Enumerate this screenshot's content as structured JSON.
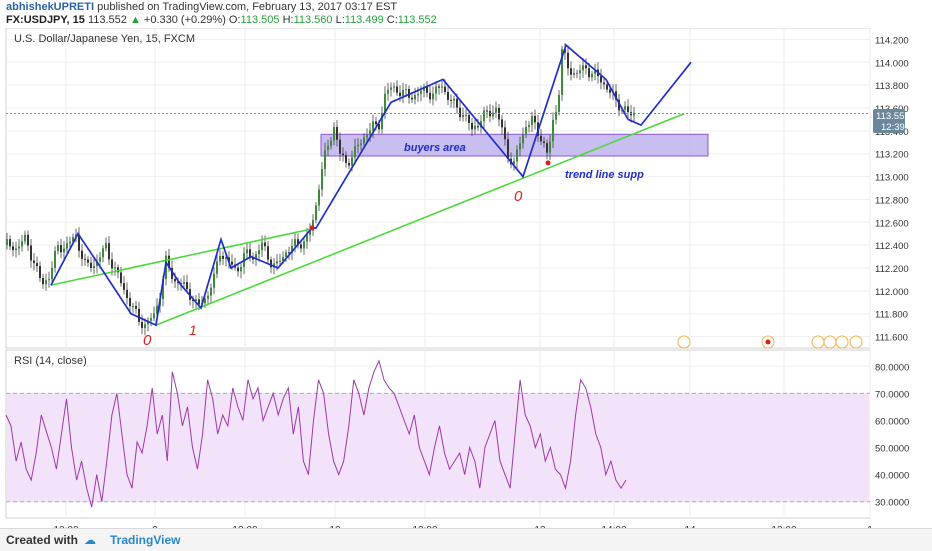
{
  "header": {
    "author": "abhishekUPRETI",
    "published": "published on TradingView.com, February 13, 2017 03:17 EST",
    "symbol": "FX:USDJPY, 15",
    "last": "113.552",
    "change": "+0.330 (+0.29%)",
    "o_label": "O:",
    "o": "113.505",
    "h_label": "H:",
    "h": "113.560",
    "l_label": "L:",
    "l": "113.499",
    "c_label": "C:",
    "c": "113.552"
  },
  "pane_title": "U.S. Dollar/Japanese Yen, 15, FXCM",
  "price_badge": {
    "value": "113.552",
    "time": "12:39"
  },
  "annotations": {
    "buyers_area": "buyers area",
    "trend_line": "trend line supp",
    "mark_0a": "0",
    "mark_1": "1",
    "mark_0b": "0"
  },
  "rsi": {
    "title": "RSI (14, close)"
  },
  "footer": {
    "created": "Created with",
    "brand": "TradingView"
  },
  "colors": {
    "price": "#333333",
    "rsi": "#9b39a8",
    "rsi_band": "#f2e3fb",
    "zone": "#b6a8ea",
    "blue_line": "#1f2ec9",
    "green_line": "#4cd93a",
    "mark_red": "#d92020",
    "badge": "#6b879c"
  },
  "chart_data": [
    {
      "type": "candlestick",
      "title": "U.S. Dollar/Japanese Yen, 15, FXCM",
      "x_ticks": [
        "12:00",
        "9",
        "12:00",
        "10",
        "12:00",
        "13",
        "14:00",
        "14",
        "12:00",
        "1"
      ],
      "y_ticks": [
        "114.200",
        "114.000",
        "113.800",
        "113.600",
        "113.400",
        "113.200",
        "113.000",
        "112.800",
        "112.600",
        "112.400",
        "112.200",
        "112.000",
        "111.800",
        "111.600"
      ],
      "ylim": [
        111.5,
        114.3
      ],
      "last_price": 113.552,
      "close_path": [
        [
          0,
          112.4
        ],
        [
          10,
          112.38
        ],
        [
          20,
          112.45
        ],
        [
          28,
          112.25
        ],
        [
          36,
          112.05
        ],
        [
          44,
          112.15
        ],
        [
          52,
          112.38
        ],
        [
          62,
          112.4
        ],
        [
          70,
          112.48
        ],
        [
          80,
          112.2
        ],
        [
          90,
          112.25
        ],
        [
          100,
          112.38
        ],
        [
          108,
          112.2
        ],
        [
          116,
          112.05
        ],
        [
          124,
          111.9
        ],
        [
          132,
          111.75
        ],
        [
          140,
          111.7
        ],
        [
          148,
          111.78
        ],
        [
          156,
          112.05
        ],
        [
          160,
          112.25
        ],
        [
          168,
          112.1
        ],
        [
          176,
          112.05
        ],
        [
          184,
          111.98
        ],
        [
          192,
          111.85
        ],
        [
          200,
          111.95
        ],
        [
          208,
          112.1
        ],
        [
          214,
          112.35
        ],
        [
          222,
          112.25
        ],
        [
          230,
          112.18
        ],
        [
          240,
          112.32
        ],
        [
          248,
          112.3
        ],
        [
          256,
          112.4
        ],
        [
          262,
          112.3
        ],
        [
          270,
          112.2
        ],
        [
          280,
          112.35
        ],
        [
          290,
          112.4
        ],
        [
          300,
          112.45
        ],
        [
          306,
          112.55
        ],
        [
          310,
          112.75
        ],
        [
          314,
          113.0
        ],
        [
          318,
          113.15
        ],
        [
          322,
          113.25
        ],
        [
          328,
          113.45
        ],
        [
          334,
          113.2
        ],
        [
          340,
          113.1
        ],
        [
          346,
          113.2
        ],
        [
          352,
          113.25
        ],
        [
          358,
          113.35
        ],
        [
          366,
          113.45
        ],
        [
          372,
          113.4
        ],
        [
          378,
          113.7
        ],
        [
          386,
          113.78
        ],
        [
          394,
          113.75
        ],
        [
          402,
          113.7
        ],
        [
          410,
          113.72
        ],
        [
          420,
          113.75
        ],
        [
          428,
          113.72
        ],
        [
          436,
          113.8
        ],
        [
          442,
          113.7
        ],
        [
          450,
          113.6
        ],
        [
          458,
          113.55
        ],
        [
          466,
          113.4
        ],
        [
          474,
          113.5
        ],
        [
          482,
          113.55
        ],
        [
          490,
          113.6
        ],
        [
          496,
          113.4
        ],
        [
          502,
          113.2
        ],
        [
          508,
          113.1
        ],
        [
          514,
          113.3
        ],
        [
          520,
          113.45
        ],
        [
          526,
          113.5
        ],
        [
          530,
          113.4
        ],
        [
          536,
          113.35
        ],
        [
          542,
          113.15
        ],
        [
          546,
          113.45
        ],
        [
          552,
          113.65
        ],
        [
          556,
          114.1
        ],
        [
          562,
          113.95
        ],
        [
          570,
          113.9
        ],
        [
          580,
          113.95
        ],
        [
          590,
          113.88
        ],
        [
          600,
          113.8
        ],
        [
          610,
          113.65
        ],
        [
          618,
          113.6
        ],
        [
          624,
          113.52
        ],
        [
          628,
          113.552
        ]
      ],
      "zigzag": [
        [
          45,
          112.05
        ],
        [
          72,
          112.5
        ],
        [
          95,
          112.2
        ],
        [
          125,
          111.8
        ],
        [
          150,
          111.7
        ],
        [
          160,
          112.25
        ],
        [
          175,
          112.05
        ],
        [
          195,
          111.85
        ],
        [
          215,
          112.45
        ],
        [
          225,
          112.2
        ],
        [
          245,
          112.3
        ],
        [
          272,
          112.2
        ],
        [
          306,
          112.55
        ],
        [
          310,
          112.55
        ],
        [
          385,
          113.65
        ],
        [
          437,
          113.85
        ],
        [
          517,
          113.0
        ],
        [
          560,
          114.15
        ],
        [
          600,
          113.85
        ],
        [
          622,
          113.5
        ]
      ],
      "projection": [
        [
          622,
          113.5
        ],
        [
          635,
          113.45
        ],
        [
          685,
          114.0
        ]
      ],
      "support_lines": [
        {
          "from": [
            45,
            112.05
          ],
          "to": [
            310,
            112.55
          ]
        },
        {
          "from": [
            150,
            111.7
          ],
          "to": [
            678,
            113.55
          ]
        }
      ],
      "buyers_area": {
        "x_from": 315,
        "x_to": 702,
        "y_from": 113.18,
        "y_to": 113.37
      }
    },
    {
      "type": "line",
      "title": "RSI (14, close)",
      "y_ticks": [
        "80.0000",
        "70.0000",
        "60.0000",
        "50.0000",
        "40.0000",
        "30.0000"
      ],
      "ylim": [
        24,
        86
      ],
      "bands": [
        30,
        70
      ],
      "values": [
        62,
        58,
        45,
        52,
        42,
        38,
        48,
        62,
        56,
        50,
        42,
        55,
        68,
        50,
        38,
        45,
        35,
        28,
        40,
        30,
        45,
        62,
        70,
        55,
        40,
        35,
        52,
        48,
        58,
        72,
        55,
        62,
        45,
        78,
        70,
        58,
        65,
        50,
        42,
        55,
        75,
        68,
        55,
        62,
        58,
        72,
        65,
        60,
        75,
        68,
        72,
        60,
        65,
        70,
        62,
        68,
        72,
        55,
        65,
        45,
        40,
        60,
        75,
        70,
        55,
        45,
        40,
        45,
        58,
        75,
        70,
        62,
        72,
        78,
        82,
        75,
        72,
        70,
        65,
        60,
        55,
        62,
        50,
        45,
        40,
        50,
        58,
        48,
        42,
        45,
        48,
        40,
        50,
        45,
        35,
        50,
        55,
        60,
        45,
        40,
        35,
        55,
        75,
        62,
        58,
        50,
        55,
        45,
        50,
        42,
        40,
        35,
        45,
        62,
        75,
        72,
        65,
        55,
        50,
        40,
        45,
        38,
        35,
        38
      ]
    }
  ]
}
